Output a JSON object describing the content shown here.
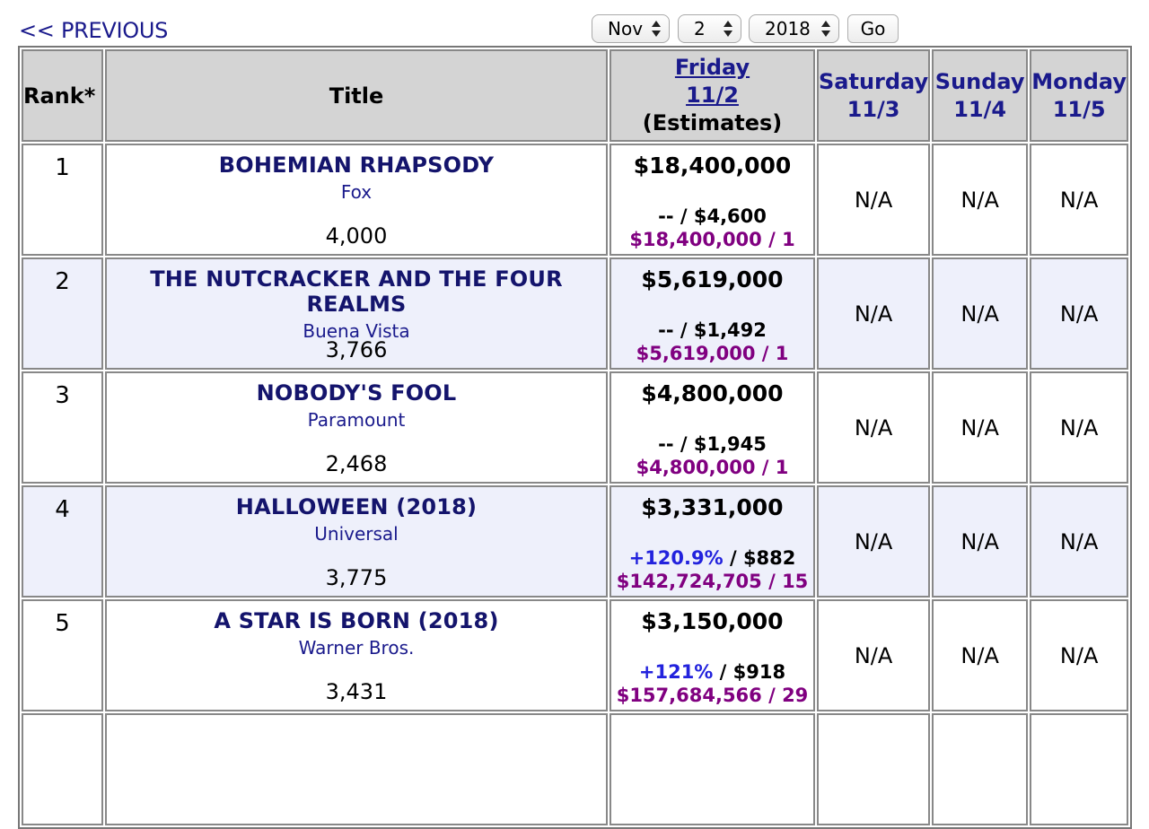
{
  "nav": {
    "previous": "<< PREVIOUS"
  },
  "controls": {
    "month": "Nov",
    "day": "2",
    "year": "2018",
    "go": "Go"
  },
  "headers": {
    "rank": "Rank*",
    "title": "Title",
    "friday_day": "Friday",
    "friday_date": "11/2",
    "friday_note": "(Estimates)",
    "saturday_day": "Saturday",
    "saturday_date": "11/3",
    "sunday_day": "Sunday",
    "sunday_date": "11/4",
    "monday_day": "Monday",
    "monday_date": "11/5"
  },
  "rows": [
    {
      "rank": "1",
      "title": "BOHEMIAN RHAPSODY",
      "studio": "Fox",
      "theaters": "4,000",
      "gross": "$18,400,000",
      "change": "--",
      "avg": " / $4,600",
      "cumulative": "$18,400,000 / 1",
      "sat": "N/A",
      "sun": "N/A",
      "mon": "N/A"
    },
    {
      "rank": "2",
      "title": "THE NUTCRACKER AND THE FOUR REALMS",
      "studio": "Buena Vista",
      "theaters": "3,766",
      "gross": "$5,619,000",
      "change": "--",
      "avg": " / $1,492",
      "cumulative": "$5,619,000 / 1",
      "sat": "N/A",
      "sun": "N/A",
      "mon": "N/A"
    },
    {
      "rank": "3",
      "title": "NOBODY'S FOOL",
      "studio": "Paramount",
      "theaters": "2,468",
      "gross": "$4,800,000",
      "change": "--",
      "avg": " / $1,945",
      "cumulative": "$4,800,000 / 1",
      "sat": "N/A",
      "sun": "N/A",
      "mon": "N/A"
    },
    {
      "rank": "4",
      "title": "HALLOWEEN (2018)",
      "studio": "Universal",
      "theaters": "3,775",
      "gross": "$3,331,000",
      "change": "+120.9%",
      "avg": " / $882",
      "cumulative": "$142,724,705 / 15",
      "sat": "N/A",
      "sun": "N/A",
      "mon": "N/A"
    },
    {
      "rank": "5",
      "title": "A STAR IS BORN (2018)",
      "studio": "Warner Bros.",
      "theaters": "3,431",
      "gross": "$3,150,000",
      "change": "+121%",
      "avg": " / $918",
      "cumulative": "$157,684,566 / 29",
      "sat": "N/A",
      "sun": "N/A",
      "mon": "N/A"
    }
  ],
  "colors": {
    "link": "#1a1a8c",
    "header_bg": "#d4d4d4",
    "alt_row": "#eef0fb",
    "change_positive": "#2222dd",
    "cumulative": "#800080"
  }
}
